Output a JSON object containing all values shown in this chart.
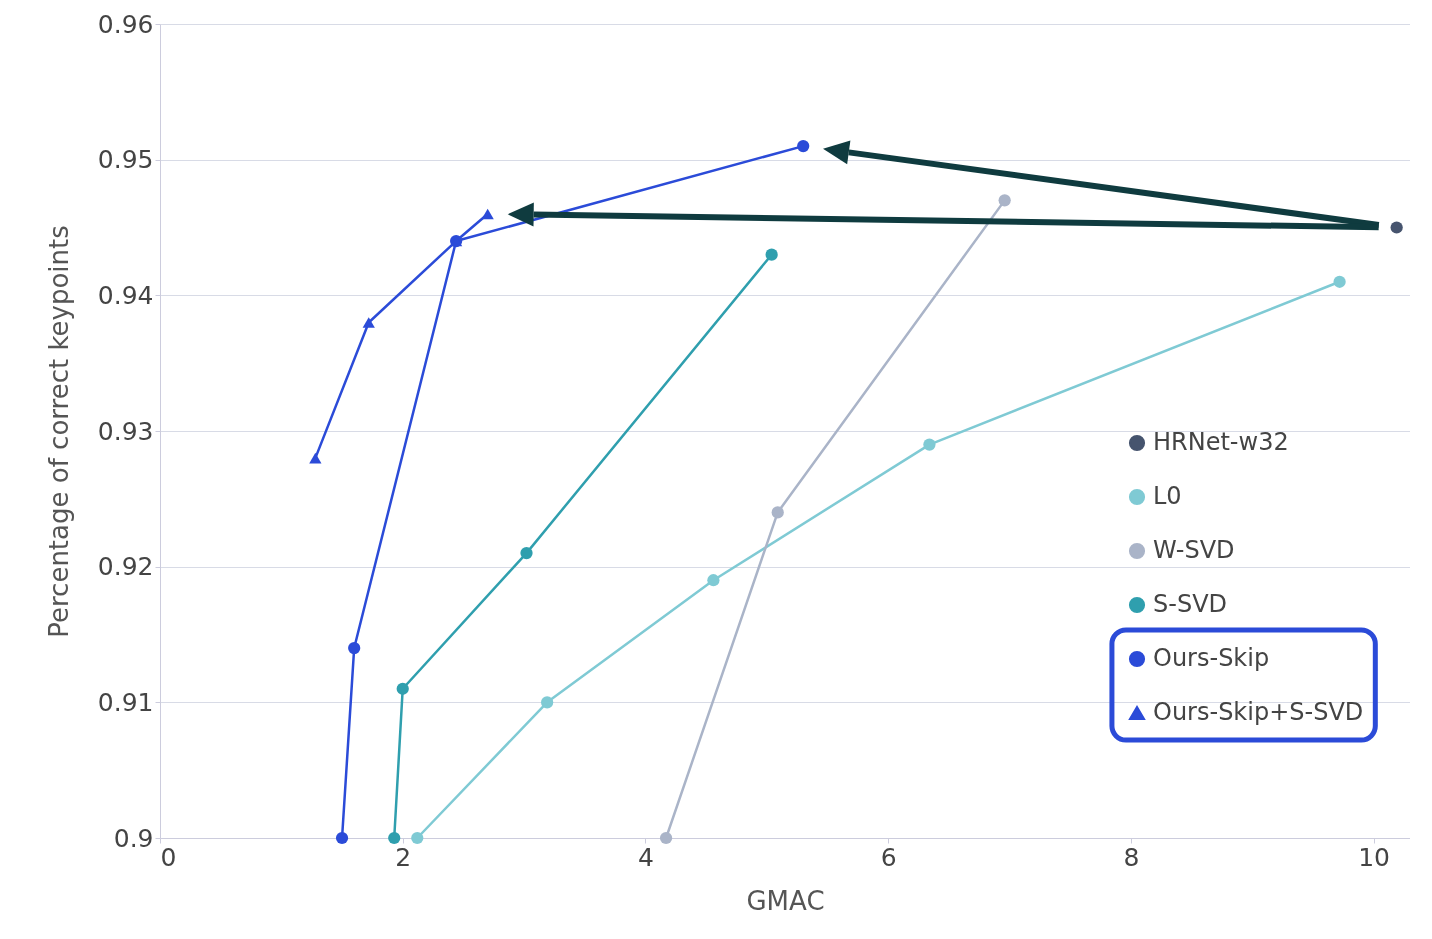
{
  "chart_data": {
    "type": "line",
    "xlabel": "GMAC",
    "ylabel": "Percentage of correct keypoints",
    "xlim": [
      0,
      10.3
    ],
    "ylim": [
      0.9,
      0.96
    ],
    "xticks": [
      0,
      2,
      4,
      6,
      8,
      10
    ],
    "yticks": [
      {
        "value": 0.9,
        "label": "0.9"
      },
      0.91,
      0.92,
      0.93,
      0.94,
      0.95,
      0.96
    ],
    "grid": "y",
    "legend": "right",
    "marker": "circle",
    "line_style": "solid",
    "series": [
      {
        "name": "HRNet-w32",
        "type": "scatter",
        "color": "#46546e",
        "x": [
          10.19
        ],
        "values": [
          0.945
        ]
      },
      {
        "name": "L0",
        "color": "#7fcad4",
        "x": [
          2.12,
          3.19,
          4.56,
          6.34,
          9.72
        ],
        "values": [
          0.9,
          0.91,
          0.919,
          0.929,
          0.941
        ]
      },
      {
        "name": "W-SVD",
        "color": "#aab4c8",
        "x": [
          4.17,
          5.09,
          6.96
        ],
        "values": [
          0.9,
          0.924,
          0.947
        ]
      },
      {
        "name": "S-SVD",
        "color": "#2f9fae",
        "x": [
          1.93,
          2.0,
          3.02,
          5.04
        ],
        "values": [
          0.9,
          0.911,
          0.921,
          0.943
        ]
      },
      {
        "name": "Ours-Skip",
        "color": "#2b4bd8",
        "x": [
          1.5,
          1.6,
          2.44,
          5.3
        ],
        "values": [
          0.9,
          0.914,
          0.944,
          0.951
        ]
      },
      {
        "name": "Ours-Skip+S-SVD",
        "color": "#2b4bd8",
        "marker": "triangle",
        "x": [
          1.28,
          1.72,
          2.44,
          2.7
        ],
        "values": [
          0.928,
          0.938,
          0.944,
          0.946
        ]
      }
    ]
  }
}
